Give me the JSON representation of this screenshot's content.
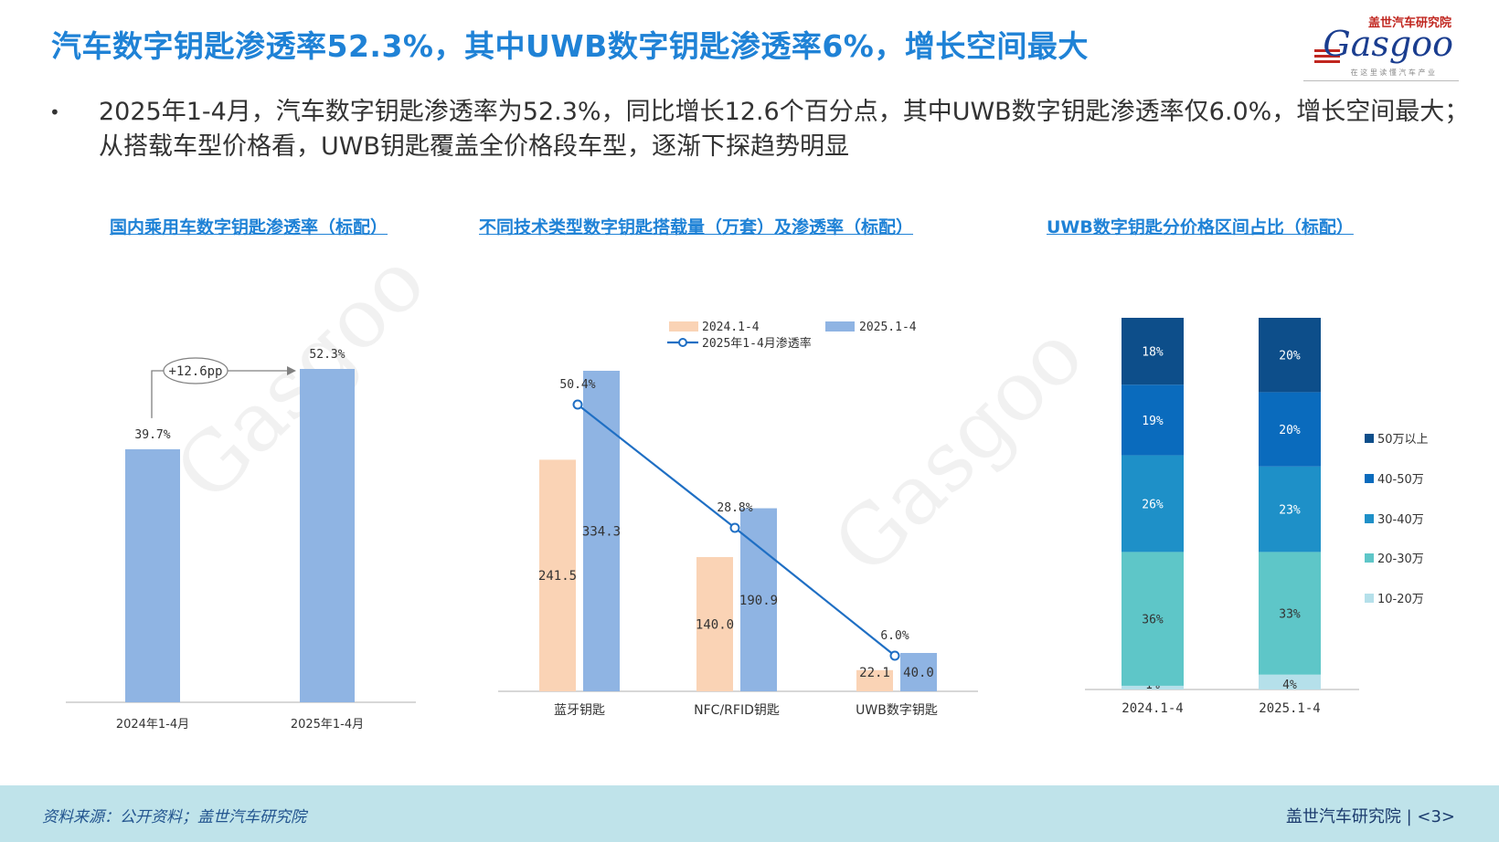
{
  "title": "汽车数字钥匙渗透率52.3%，其中UWB数字钥匙渗透率6%，增长空间最大",
  "logo": {
    "cn": "盖世汽车研究院",
    "brand": "Gasgoo",
    "tagline": "在 这 里 读 懂 汽 车 产 业"
  },
  "bullet": "2025年1-4月，汽车数字钥匙渗透率为52.3%，同比增长12.6个百分点，其中UWB数字钥匙渗透率仅6.0%，增长空间最大；从搭载车型价格看，UWB钥匙覆盖全价格段车型，逐渐下探趋势明显",
  "colors": {
    "title": "#1f82d6",
    "bar_blue": "#8fb4e3",
    "bar_peach": "#fad3b5",
    "line": "#1f6fc4"
  },
  "chart_data": [
    {
      "type": "bar",
      "title": "国内乘用车数字钥匙渗透率（标配）",
      "categories": [
        "2024年1-4月",
        "2025年1-4月"
      ],
      "values": [
        39.7,
        52.3
      ],
      "value_labels": [
        "39.7%",
        "52.3%"
      ],
      "annotation": "+12.6pp",
      "ylim": [
        0,
        60
      ],
      "grid": false
    },
    {
      "type": "bar",
      "title": "不同技术类型数字钥匙搭载量（万套）及渗透率（标配）",
      "categories": [
        "蓝牙钥匙",
        "NFC/RFID钥匙",
        "UWB数字钥匙"
      ],
      "series": [
        {
          "name": "2024.1-4",
          "values": [
            241.5,
            140.0,
            22.1
          ],
          "labels": [
            "241.5",
            "140.0",
            "22.1"
          ],
          "color": "#fad3b5"
        },
        {
          "name": "2025.1-4",
          "values": [
            334.3,
            190.9,
            40.0
          ],
          "labels": [
            "334.3",
            "190.9",
            "40.0"
          ],
          "color": "#8fb4e3"
        }
      ],
      "line_series": {
        "name": "2025年1-4月渗透率",
        "values": [
          50.4,
          28.8,
          6.0
        ],
        "labels": [
          "50.4%",
          "28.8%",
          "6.0%"
        ],
        "color": "#1f6fc4"
      },
      "ylim": [
        0,
        340
      ],
      "line_ylim": [
        0,
        60
      ],
      "legend": "top"
    },
    {
      "type": "bar",
      "stacked": true,
      "title": "UWB数字钥匙分价格区间占比（标配）",
      "categories": [
        "2024.1-4",
        "2025.1-4"
      ],
      "series": [
        {
          "name": "10-20万",
          "values": [
            1,
            4
          ],
          "labels": [
            "1%",
            "4%"
          ],
          "color": "#b5e0ea"
        },
        {
          "name": "20-30万",
          "values": [
            36,
            33
          ],
          "labels": [
            "36%",
            "33%"
          ],
          "color": "#5ec6c8"
        },
        {
          "name": "30-40万",
          "values": [
            26,
            23
          ],
          "labels": [
            "26%",
            "23%"
          ],
          "color": "#1e90c8"
        },
        {
          "name": "40-50万",
          "values": [
            19,
            20
          ],
          "labels": [
            "19%",
            "20%"
          ],
          "color": "#0a6bbd"
        },
        {
          "name": "50万以上",
          "values": [
            18,
            20
          ],
          "labels": [
            "18%",
            "20%"
          ],
          "color": "#0d4e8a"
        }
      ],
      "legend": "right"
    }
  ],
  "footer": {
    "source": "资料来源：公开资料；盖世汽车研究院",
    "org": "盖世汽车研究院",
    "page": "<3>"
  }
}
